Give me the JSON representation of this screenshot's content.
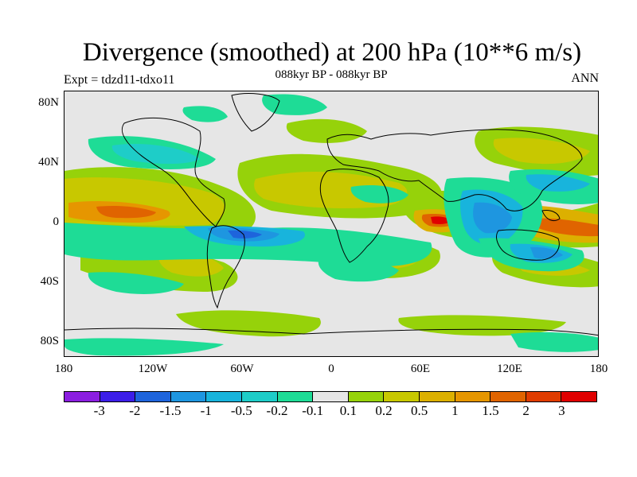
{
  "title": "Divergence (smoothed) at 200 hPa (10**6 m/s)",
  "subtitle": "088kyr BP - 088kyr BP",
  "expt": "Expt = tdzd11-tdxo11",
  "season": "ANN",
  "lat_ticks": [
    "80N",
    "40N",
    "0",
    "40S",
    "80S"
  ],
  "lon_ticks": [
    "180",
    "120W",
    "60W",
    "0",
    "60E",
    "120E",
    "180"
  ],
  "colorbar": {
    "labels": [
      "-3",
      "-2",
      "-1.5",
      "-1",
      "-0.5",
      "-0.2",
      "-0.1",
      "0.1",
      "0.2",
      "0.5",
      "1",
      "1.5",
      "2",
      "3"
    ],
    "colors": [
      "#8b1ee0",
      "#3c1ee8",
      "#1e64dc",
      "#1e96e0",
      "#18b4dc",
      "#1ecdc8",
      "#1edc96",
      "#e6e6e6",
      "#96d20a",
      "#c8c800",
      "#dcb000",
      "#e69600",
      "#e06400",
      "#e03c00",
      "#e00000"
    ]
  },
  "map_colors": {
    "neutral": "#e6e6e6",
    "pos1": "#96d20a",
    "pos2": "#c8c800",
    "pos3": "#dcb000",
    "pos4": "#e69600",
    "pos5": "#e06400",
    "pos6": "#e03c00",
    "pos7": "#e00000",
    "neg1": "#1edc96",
    "neg2": "#1ecdc8",
    "neg3": "#18b4dc",
    "neg4": "#1e96e0",
    "neg5": "#1e64dc"
  }
}
